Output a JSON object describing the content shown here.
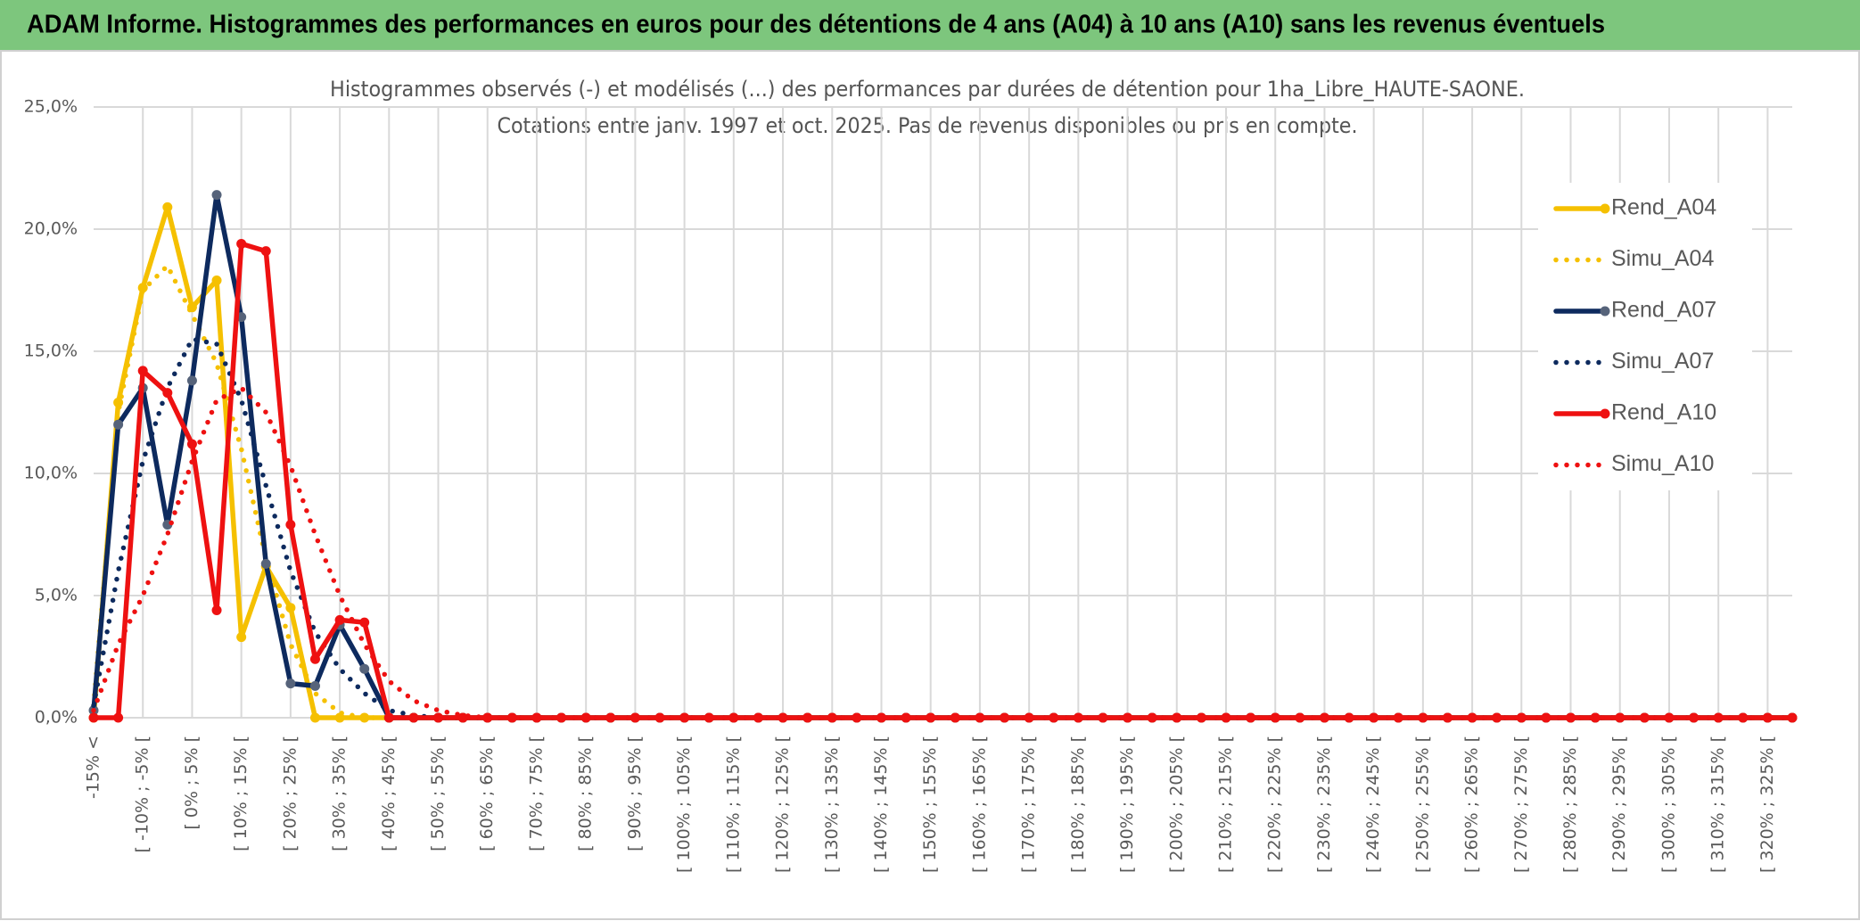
{
  "header": {
    "title": "ADAM Informe. Histogrammes des performances en euros pour des détentions de 4 ans (A04) à 10 ans (A10) sans les revenus éventuels"
  },
  "chart_data": {
    "type": "line",
    "title": "Histogrammes observés (-) et modélisés (...) des performances par durées de détention pour 1ha_Libre_HAUTE-SAONE.",
    "subtitle": "Cotations entre janv. 1997 et oct. 2025. Pas de revenus disponibles ou pris en compte.",
    "categories": [
      "-15% <",
      null,
      "[ -10% ; -5% [",
      null,
      "[ 0% ; 5% [",
      null,
      "[ 10% ; 15% [",
      null,
      "[ 20% ; 25% [",
      null,
      "[ 30% ; 35% [",
      null,
      "[ 40% ; 45% [",
      null,
      "[ 50% ; 55% [",
      null,
      "[ 60% ; 65% [",
      null,
      "[ 70% ; 75% [",
      null,
      "[ 80% ; 85% [",
      null,
      "[ 90% ; 95% [",
      null,
      "[ 100% ; 105% [",
      null,
      "[ 110% ; 115% [",
      null,
      "[ 120% ; 125% [",
      null,
      "[ 130% ; 135% [",
      null,
      "[ 140% ; 145% [",
      null,
      "[ 150% ; 155% [",
      null,
      "[ 160% ; 165% [",
      null,
      "[ 170% ; 175% [",
      null,
      "[ 180% ; 185% [",
      null,
      "[ 190% ; 195% [",
      null,
      "[ 200% ; 205% [",
      null,
      "[ 210% ; 215% [",
      null,
      "[ 220% ; 225% [",
      null,
      "[ 230% ; 235% [",
      null,
      "[ 240% ; 245% [",
      null,
      "[ 250% ; 255% [",
      null,
      "[ 260% ; 265% [",
      null,
      "[ 270% ; 275% [",
      null,
      "[ 280% ; 285% [",
      null,
      "[ 290% ; 295% [",
      null,
      "[ 300% ; 305% [",
      null,
      "[ 310% ; 315% [",
      null,
      "[ 320% ; 325% [",
      null
    ],
    "series": [
      {
        "name": "Rend_A04",
        "color": "#f5c000",
        "style": "solid",
        "markers": true,
        "values": [
          0,
          12.9,
          17.6,
          20.9,
          16.8,
          17.9,
          3.3,
          6.2,
          4.5,
          0,
          0,
          0,
          0,
          0,
          0,
          0,
          0,
          0,
          0,
          0,
          0,
          0,
          0,
          0,
          0,
          0,
          0,
          0,
          0,
          0,
          0,
          0,
          0,
          0,
          0,
          0,
          0,
          0,
          0,
          0,
          0,
          0,
          0,
          0,
          0,
          0,
          0,
          0,
          0,
          0,
          0,
          0,
          0,
          0,
          0,
          0,
          0,
          0,
          0,
          0,
          0,
          0,
          0,
          0,
          0,
          0,
          0,
          0,
          0,
          0
        ]
      },
      {
        "name": "Simu_A04",
        "color": "#f5c000",
        "style": "dotted",
        "markers": false,
        "values": [
          0.5,
          12.5,
          17.5,
          18.5,
          16.5,
          14.5,
          11,
          6.5,
          3,
          1,
          0.2,
          0,
          0,
          0,
          0,
          0,
          0,
          0,
          0,
          0,
          0,
          0,
          0,
          0,
          0,
          0,
          0,
          0,
          0,
          0,
          0,
          0,
          0,
          0,
          0,
          0,
          0,
          0,
          0,
          0,
          0,
          0,
          0,
          0,
          0,
          0,
          0,
          0,
          0,
          0,
          0,
          0,
          0,
          0,
          0,
          0,
          0,
          0,
          0,
          0,
          0,
          0,
          0,
          0,
          0,
          0,
          0,
          0,
          0,
          0
        ]
      },
      {
        "name": "Rend_A07",
        "color": "#0d2a5e",
        "style": "solid",
        "markers": true,
        "values": [
          0.3,
          12,
          13.5,
          7.9,
          13.8,
          21.4,
          16.4,
          6.3,
          1.4,
          1.3,
          3.8,
          2,
          0,
          0,
          0,
          0,
          0,
          0,
          0,
          0,
          0,
          0,
          0,
          0,
          0,
          0,
          0,
          0,
          0,
          0,
          0,
          0,
          0,
          0,
          0,
          0,
          0,
          0,
          0,
          0,
          0,
          0,
          0,
          0,
          0,
          0,
          0,
          0,
          0,
          0,
          0,
          0,
          0,
          0,
          0,
          0,
          0,
          0,
          0,
          0,
          0,
          0,
          0,
          0,
          0,
          0,
          0,
          0,
          0,
          0
        ]
      },
      {
        "name": "Simu_A07",
        "color": "#0d2a5e",
        "style": "dotted",
        "markers": false,
        "values": [
          0.5,
          6,
          10.5,
          13.5,
          15.5,
          15.3,
          13,
          9.5,
          6,
          3.5,
          2,
          1,
          0.3,
          0.1,
          0,
          0,
          0,
          0,
          0,
          0,
          0,
          0,
          0,
          0,
          0,
          0,
          0,
          0,
          0,
          0,
          0,
          0,
          0,
          0,
          0,
          0,
          0,
          0,
          0,
          0,
          0,
          0,
          0,
          0,
          0,
          0,
          0,
          0,
          0,
          0,
          0,
          0,
          0,
          0,
          0,
          0,
          0,
          0,
          0,
          0,
          0,
          0,
          0,
          0,
          0,
          0,
          0,
          0,
          0,
          0
        ]
      },
      {
        "name": "Rend_A10",
        "color": "#ee1111",
        "style": "solid",
        "markers": true,
        "values": [
          0,
          0,
          14.2,
          13.3,
          11.2,
          4.4,
          19.4,
          19.1,
          7.9,
          2.4,
          4,
          3.9,
          0,
          0,
          0,
          0,
          0,
          0,
          0,
          0,
          0,
          0,
          0,
          0,
          0,
          0,
          0,
          0,
          0,
          0,
          0,
          0,
          0,
          0,
          0,
          0,
          0,
          0,
          0,
          0,
          0,
          0,
          0,
          0,
          0,
          0,
          0,
          0,
          0,
          0,
          0,
          0,
          0,
          0,
          0,
          0,
          0,
          0,
          0,
          0,
          0,
          0,
          0,
          0,
          0,
          0,
          0,
          0,
          0,
          0
        ]
      },
      {
        "name": "Simu_A10",
        "color": "#ee1111",
        "style": "dotted",
        "markers": false,
        "values": [
          0.3,
          3,
          5,
          7.5,
          10.5,
          13,
          13.5,
          12.5,
          10.3,
          7.5,
          5,
          3,
          1.5,
          0.7,
          0.3,
          0.1,
          0,
          0,
          0,
          0,
          0,
          0,
          0,
          0,
          0,
          0,
          0,
          0,
          0,
          0,
          0,
          0,
          0,
          0,
          0,
          0,
          0,
          0,
          0,
          0,
          0,
          0,
          0,
          0,
          0,
          0,
          0,
          0,
          0,
          0,
          0,
          0,
          0,
          0,
          0,
          0,
          0,
          0,
          0,
          0,
          0,
          0,
          0,
          0,
          0,
          0,
          0,
          0,
          0,
          0
        ]
      }
    ],
    "ylim": [
      0,
      25
    ],
    "yticks": [
      {
        "value": 0,
        "label": "0,0%"
      },
      {
        "value": 5,
        "label": "5,0%"
      },
      {
        "value": 10,
        "label": "10,0%"
      },
      {
        "value": 15,
        "label": "15,0%"
      },
      {
        "value": 20,
        "label": "20,0%"
      },
      {
        "value": 25,
        "label": "25,0%"
      }
    ],
    "grid": true,
    "legend": "right"
  }
}
